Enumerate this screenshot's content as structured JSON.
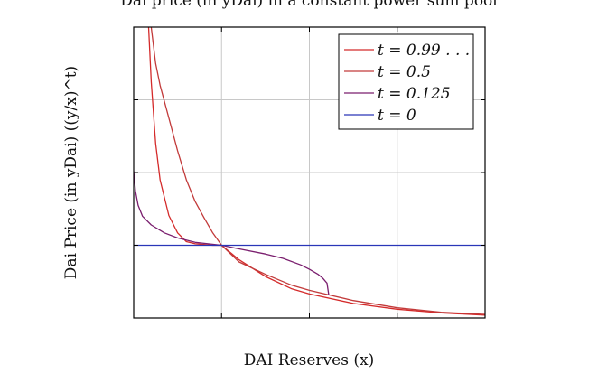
{
  "chart_data": {
    "type": "line",
    "title": "Dai price (in yDai) in a constant power sum pool",
    "xlabel": "DAI Reserves (x)",
    "ylabel": "Dai Price (in yDai) ((y/x)^t)",
    "xlim": [
      0,
      4
    ],
    "ylim": [
      0,
      4
    ],
    "grid": true,
    "legend_position": "top-right",
    "series": [
      {
        "name": "t = 0.99 . . .",
        "color": "#d42a2a",
        "x": [
          0.17,
          0.2,
          0.25,
          0.3,
          0.4,
          0.5,
          0.6,
          0.7,
          0.8,
          0.9,
          1.0,
          1.2,
          1.5,
          1.8,
          2.0,
          2.5,
          3.0,
          3.5,
          4.0
        ],
        "y": [
          4.0,
          3.25,
          2.4,
          1.9,
          1.41,
          1.17,
          1.05,
          1.02,
          1.01,
          1.0,
          1.0,
          0.8,
          0.57,
          0.4,
          0.33,
          0.2,
          0.12,
          0.07,
          0.04
        ]
      },
      {
        "name": "t = 0.5",
        "color": "#c23a3a",
        "x": [
          0.2,
          0.25,
          0.3,
          0.4,
          0.5,
          0.6,
          0.7,
          0.8,
          0.9,
          1.0,
          1.2,
          1.5,
          1.8,
          2.0,
          2.5,
          3.0,
          3.5,
          4.0
        ],
        "y": [
          4.0,
          3.5,
          3.2,
          2.75,
          2.3,
          1.9,
          1.6,
          1.38,
          1.17,
          1.0,
          0.77,
          0.6,
          0.45,
          0.38,
          0.24,
          0.14,
          0.08,
          0.05
        ]
      },
      {
        "name": "t = 0.125",
        "color": "#7a1e6e",
        "x": [
          0.0,
          0.02,
          0.05,
          0.1,
          0.2,
          0.35,
          0.5,
          0.7,
          0.85,
          1.0,
          1.2,
          1.5,
          1.7,
          1.9,
          2.0,
          2.1,
          2.15,
          2.2,
          2.22
        ],
        "y": [
          2.02,
          1.75,
          1.55,
          1.4,
          1.28,
          1.17,
          1.1,
          1.04,
          1.02,
          1.0,
          0.95,
          0.88,
          0.82,
          0.73,
          0.67,
          0.6,
          0.55,
          0.48,
          0.32
        ]
      },
      {
        "name": "t = 0",
        "color": "#2a36b8",
        "x": [
          0,
          4
        ],
        "y": [
          1,
          1
        ]
      }
    ]
  }
}
